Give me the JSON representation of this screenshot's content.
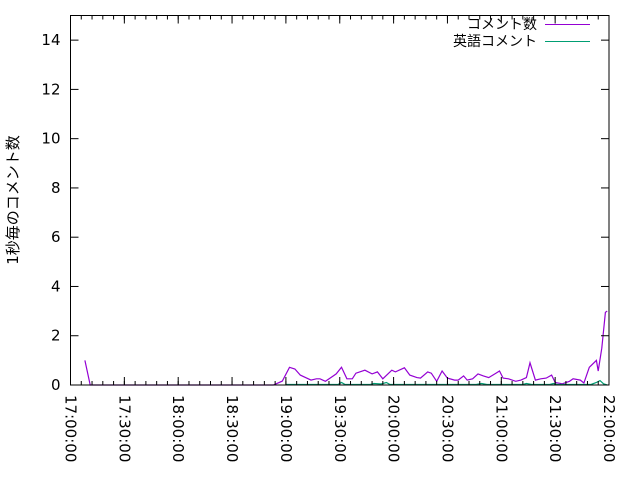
{
  "chart_data": {
    "type": "line",
    "title": "",
    "xlabel": "",
    "ylabel": "1秒毎のコメント数",
    "xlim": [
      "17:00:00",
      "22:00:00"
    ],
    "ylim": [
      0,
      15
    ],
    "x_ticks": [
      "17:00:00",
      "17:30:00",
      "18:00:00",
      "18:30:00",
      "19:00:00",
      "19:30:00",
      "20:00:00",
      "20:30:00",
      "21:00:00",
      "21:30:00",
      "22:00:00"
    ],
    "y_ticks": [
      "0",
      "2",
      "4",
      "6",
      "8",
      "10",
      "12",
      "14"
    ],
    "grid": false,
    "legend_position": "top-right",
    "series": [
      {
        "name": "コメント数",
        "color": "#9400d3",
        "points": [
          [
            "17:08",
            1.0
          ],
          [
            "17:11",
            0
          ],
          [
            "17:20",
            0
          ],
          [
            "18:53",
            0
          ],
          [
            "18:58",
            0.16
          ],
          [
            "19:02",
            0.72
          ],
          [
            "19:05",
            0.65
          ],
          [
            "19:08",
            0.4
          ],
          [
            "19:11",
            0.3
          ],
          [
            "19:14",
            0.2
          ],
          [
            "19:17",
            0.25
          ],
          [
            "19:19",
            0.25
          ],
          [
            "19:22",
            0.15
          ],
          [
            "19:25",
            0.3
          ],
          [
            "19:28",
            0.45
          ],
          [
            "19:31",
            0.72
          ],
          [
            "19:34",
            0.25
          ],
          [
            "19:37",
            0.25
          ],
          [
            "19:39",
            0.48
          ],
          [
            "19:44",
            0.6
          ],
          [
            "19:48",
            0.45
          ],
          [
            "19:51",
            0.53
          ],
          [
            "19:54",
            0.25
          ],
          [
            "19:59",
            0.6
          ],
          [
            "20:01",
            0.53
          ],
          [
            "20:06",
            0.7
          ],
          [
            "20:09",
            0.4
          ],
          [
            "20:13",
            0.3
          ],
          [
            "20:15",
            0.28
          ],
          [
            "20:19",
            0.53
          ],
          [
            "20:21",
            0.48
          ],
          [
            "20:24",
            0.15
          ],
          [
            "20:27",
            0.57
          ],
          [
            "20:30",
            0.28
          ],
          [
            "20:34",
            0.2
          ],
          [
            "20:36",
            0.2
          ],
          [
            "20:39",
            0.37
          ],
          [
            "20:41",
            0.2
          ],
          [
            "20:44",
            0.25
          ],
          [
            "20:47",
            0.45
          ],
          [
            "20:50",
            0.37
          ],
          [
            "20:53",
            0.3
          ],
          [
            "20:57",
            0.48
          ],
          [
            "20:59",
            0.57
          ],
          [
            "21:01",
            0.28
          ],
          [
            "21:04",
            0.25
          ],
          [
            "21:08",
            0.15
          ],
          [
            "21:11",
            0.2
          ],
          [
            "21:14",
            0.3
          ],
          [
            "21:16",
            0.9
          ],
          [
            "21:19",
            0.2
          ],
          [
            "21:22",
            0.25
          ],
          [
            "21:25",
            0.28
          ],
          [
            "21:28",
            0.4
          ],
          [
            "21:30",
            0.1
          ],
          [
            "21:34",
            0.05
          ],
          [
            "21:38",
            0.15
          ],
          [
            "21:40",
            0.25
          ],
          [
            "21:44",
            0.2
          ],
          [
            "21:46",
            0.08
          ],
          [
            "21:49",
            0.72
          ],
          [
            "21:53",
            1.0
          ],
          [
            "21:54",
            0.57
          ],
          [
            "21:56",
            1.5
          ],
          [
            "21:58",
            2.95
          ],
          [
            "21:59",
            3.0
          ]
        ]
      },
      {
        "name": "英語コメント",
        "color": "#009e73",
        "points": [
          [
            "19:00",
            0.02
          ],
          [
            "19:20",
            0.02
          ],
          [
            "19:29",
            0.02
          ],
          [
            "19:31",
            0.1
          ],
          [
            "19:33",
            0.02
          ],
          [
            "19:47",
            0.02
          ],
          [
            "19:49",
            0.06
          ],
          [
            "19:53",
            0.04
          ],
          [
            "19:56",
            0.1
          ],
          [
            "19:58",
            0.02
          ],
          [
            "20:46",
            0.02
          ],
          [
            "20:49",
            0.06
          ],
          [
            "20:52",
            0.02
          ],
          [
            "21:12",
            0.02
          ],
          [
            "21:14",
            0.06
          ],
          [
            "21:17",
            0.02
          ],
          [
            "21:27",
            0.02
          ],
          [
            "21:29",
            0.06
          ],
          [
            "21:31",
            0.02
          ],
          [
            "21:50",
            0.02
          ],
          [
            "21:53",
            0.1
          ],
          [
            "21:55",
            0.18
          ],
          [
            "21:57",
            0.05
          ],
          [
            "21:59",
            0
          ]
        ]
      }
    ]
  }
}
